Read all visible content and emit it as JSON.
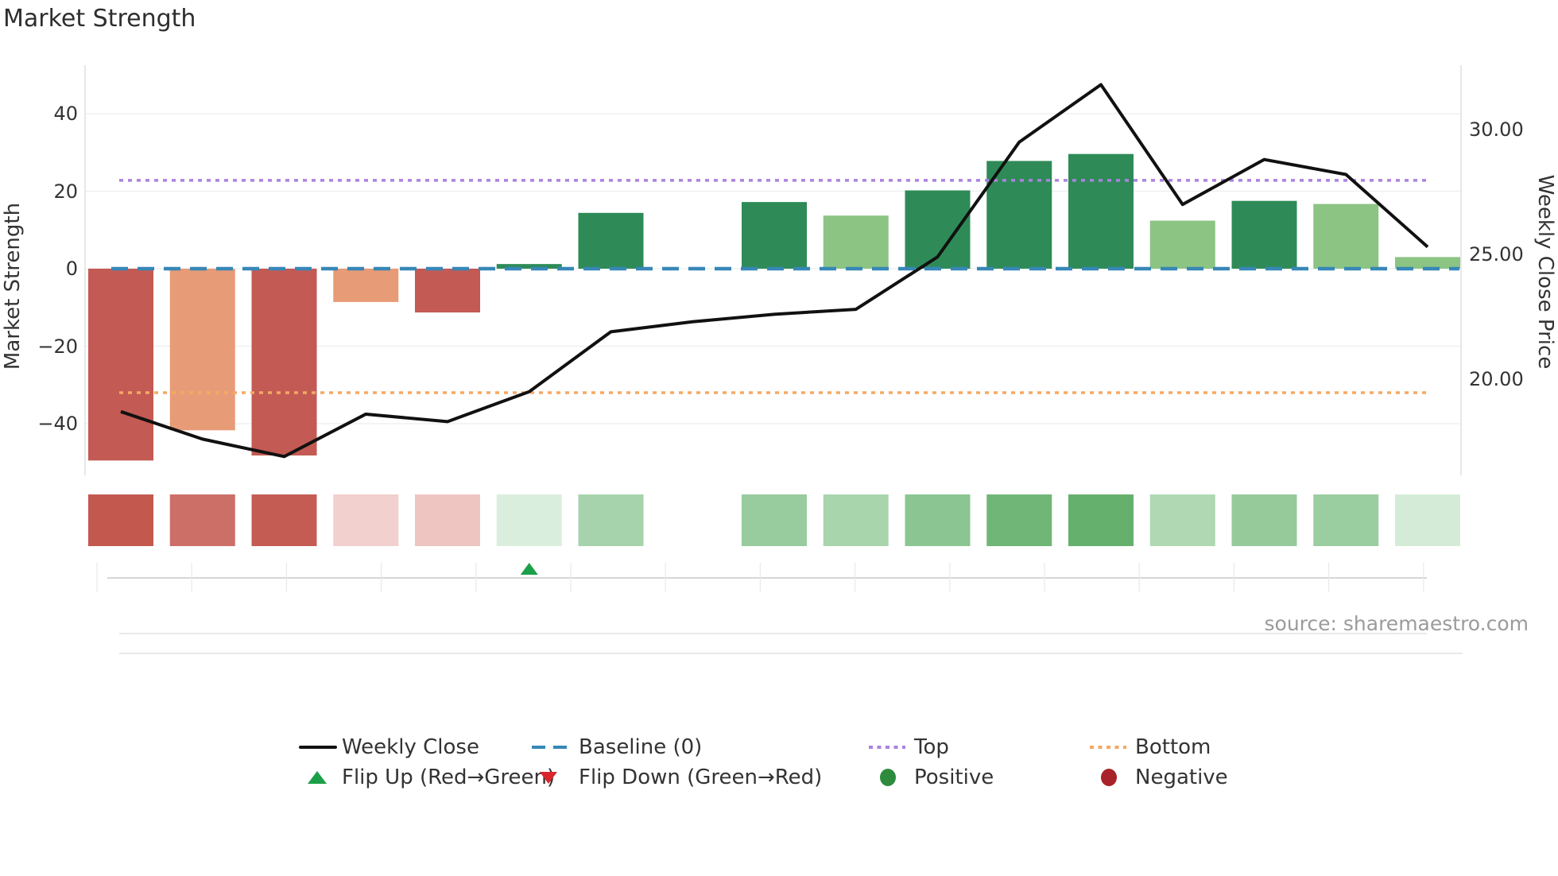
{
  "title": "Market Strength",
  "source_text": "source: sharemaestro.com",
  "axes": {
    "left": {
      "label": "Market Strength",
      "tick_labels": [
        "40",
        "20",
        "0",
        "−20",
        "−40"
      ],
      "tick_values": [
        40,
        20,
        0,
        -20,
        -40
      ]
    },
    "right": {
      "label": "Weekly Close Price",
      "tick_labels": [
        "30.00",
        "25.00",
        "20.00"
      ],
      "tick_values": [
        30,
        25,
        20
      ]
    }
  },
  "legend": {
    "items": [
      {
        "label": "Weekly Close",
        "swatch": "black-line"
      },
      {
        "label": "Baseline (0)",
        "swatch": "blue-dashed"
      },
      {
        "label": "Top",
        "swatch": "purple-dotted"
      },
      {
        "label": "Bottom",
        "swatch": "orange-dotted"
      },
      {
        "label": "Flip Up (Red→Green)",
        "swatch": "green-triangle-up"
      },
      {
        "label": "Flip Down (Green→Red)",
        "swatch": "red-triangle-down"
      },
      {
        "label": "Positive",
        "swatch": "green-circle"
      },
      {
        "label": "Negative",
        "swatch": "dark-red-circle"
      }
    ]
  },
  "colors": {
    "bar_dark_red": "#c35a53",
    "bar_salmon": "#e89b77",
    "bar_dark_green": "#2e8b57",
    "bar_light_green": "#8cc483",
    "line_black": "#111111",
    "baseline_blue": "#3787b7",
    "top_purple": "#ab82e0",
    "bottom_orange": "#f5a963",
    "flip_up_green": "#1ba049",
    "flip_down_red": "#d8262c",
    "positive_green": "#2e8b3e",
    "negative_red": "#a82329",
    "grid": "#eef0f3",
    "spine": "#d8d8d8",
    "axis_line": "#c9c9c9",
    "sub_line": "#dcdcdc",
    "tick_line": "#e9e9e9"
  },
  "chart_data": {
    "type": "combo: bar (left axis) + line (right axis) + heatmap strip",
    "title": "Market Strength",
    "n_points": 17,
    "x_axis": {
      "tick_labels_visible": false
    },
    "bar_series": {
      "name": "Market Strength",
      "axis": "left",
      "values": [
        -49.5,
        -41.7,
        -48.2,
        -8.6,
        -11.3,
        1.2,
        14.4,
        null,
        17.2,
        13.7,
        20.2,
        27.8,
        29.6,
        12.4,
        17.5,
        16.7,
        3.0
      ],
      "shades": [
        "dark_red",
        "salmon",
        "dark_red",
        "salmon",
        "dark_red",
        "dark_green",
        "dark_green",
        null,
        "dark_green",
        "light_green",
        "dark_green",
        "dark_green",
        "dark_green",
        "light_green",
        "dark_green",
        "light_green",
        "light_green"
      ],
      "missing_index": 7
    },
    "line_series": {
      "name": "Weekly Close",
      "axis": "right",
      "values": [
        18.7,
        17.6,
        16.9,
        18.6,
        18.3,
        19.5,
        21.9,
        22.3,
        22.6,
        22.8,
        24.9,
        29.5,
        31.8,
        27.0,
        28.8,
        28.2,
        25.3
      ]
    },
    "reference_lines": [
      {
        "name": "Baseline (0)",
        "axis": "left",
        "value": 0,
        "style": "dashed",
        "color_key": "baseline_blue"
      },
      {
        "name": "Top",
        "axis": "left",
        "value": 22.8,
        "style": "dotted",
        "color_key": "top_purple"
      },
      {
        "name": "Bottom",
        "axis": "left",
        "value": -32.0,
        "style": "dotted",
        "color_key": "bottom_orange"
      }
    ],
    "heatmap_strip": {
      "colors": [
        "#c3584f",
        "#cb6f67",
        "#c45c53",
        "#f2d0cd",
        "#efc5c1",
        "#daeedd",
        "#a6d3ab",
        null,
        "#98cb9d",
        "#a9d5ad",
        "#8bc591",
        "#70b677",
        "#66b06d",
        "#afd8b3",
        "#96ca9b",
        "#9acd9f",
        "#d4ecd7"
      ]
    },
    "markers": {
      "flip_up_index": 5,
      "flip_down_indices": []
    },
    "left_ylim": [
      -53,
      52.5
    ],
    "right_axis_ticks": [
      30.0,
      25.0,
      20.0
    ],
    "grid": "horizontal only",
    "legend_position": "bottom, two rows"
  }
}
